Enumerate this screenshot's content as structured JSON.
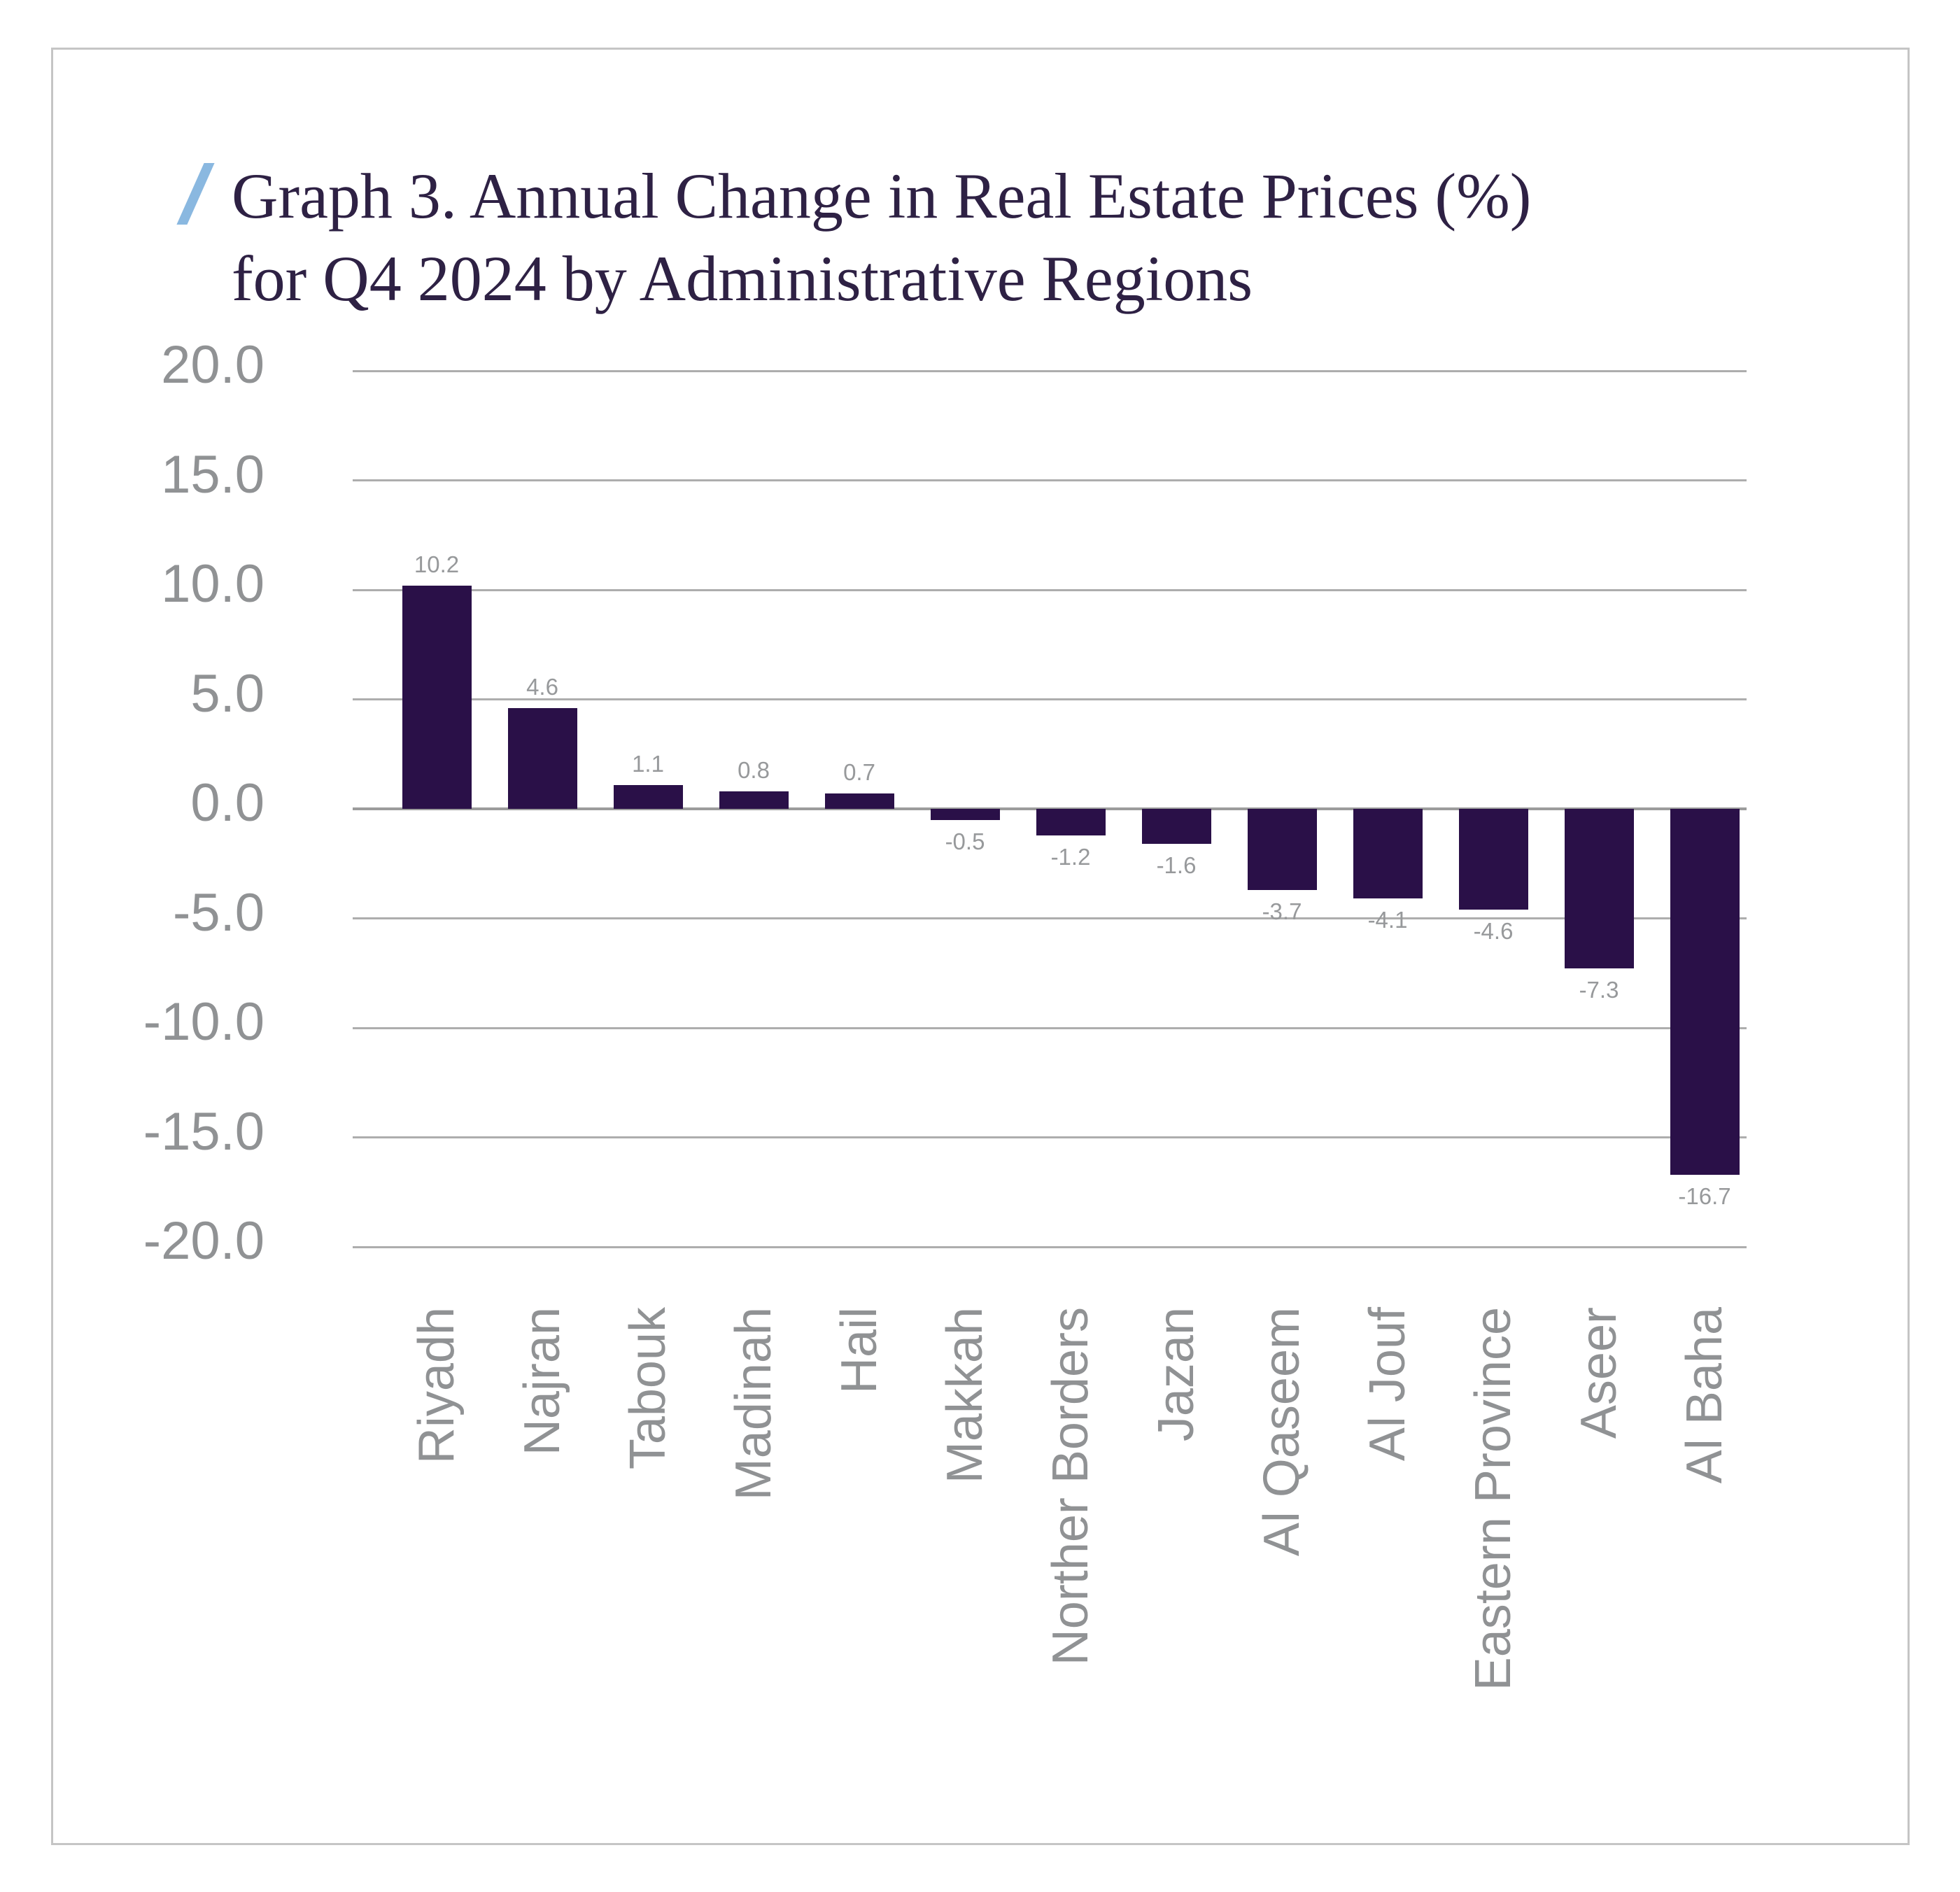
{
  "title": {
    "line1": "Graph 3. Annual Change in Real Estate Prices (%)",
    "line2": "for Q4 2024 by Administrative Regions"
  },
  "colors": {
    "bar": "#2A1048",
    "gridline": "#ADADAD",
    "zero_line": "#9C9C9C",
    "tick_label": "#909294",
    "value_label": "#97999B",
    "category_label": "#909294",
    "title_text": "#2E2144",
    "slash_accent": "#8AB8E0",
    "card_border": "#C5C5C5",
    "background": "#FFFFFF"
  },
  "chart_data": {
    "type": "bar",
    "title": "Graph 3. Annual Change in Real Estate Prices (%) for Q4 2024 by Administrative Regions",
    "categories": [
      "Riyadh",
      "Najran",
      "Tabouk",
      "Madinah",
      "Hail",
      "Makkah",
      "Norther Borders",
      "Jazan",
      "Al Qaseem",
      "Al Jouf",
      "Eastern Province",
      "Aseer",
      "Al Baha"
    ],
    "values": [
      10.2,
      4.6,
      1.1,
      0.8,
      0.7,
      -0.5,
      -1.2,
      -1.6,
      -3.7,
      -4.1,
      -4.6,
      -7.3,
      -16.7
    ],
    "value_labels": [
      "10.2",
      "4.6",
      "1.1",
      "0.8",
      "0.7",
      "-0.5",
      "-1.2",
      "-1.6",
      "-3.7",
      "-4.1",
      "-4.6",
      "-7.3",
      "-16.7"
    ],
    "xlabel": "",
    "ylabel": "",
    "ylim": [
      -20,
      20
    ],
    "ytick_step": 5,
    "ytick_labels": [
      "20.0",
      "15.0",
      "10.0",
      "5.0",
      "0.0",
      "-5.0",
      "-10.0",
      "-15.0",
      "-20.0"
    ],
    "ytick_values": [
      20,
      15,
      10,
      5,
      0,
      -5,
      -10,
      -15,
      -20
    ],
    "grid": "horizontal",
    "legend": "none"
  }
}
